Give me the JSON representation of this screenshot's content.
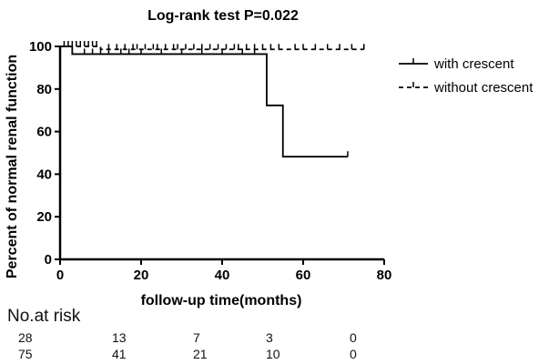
{
  "chart_data": {
    "type": "line",
    "title": "Log-rank test P=0.022",
    "xlabel": "follow-up time(months)",
    "ylabel": "Percent  of normal renal function",
    "xlim": [
      0,
      80
    ],
    "ylim": [
      0,
      100
    ],
    "xticks": [
      "0",
      "20",
      "40",
      "60",
      "80"
    ],
    "yticks": [
      "0",
      "20",
      "40",
      "60",
      "80",
      "100"
    ],
    "legend_position": "right",
    "series": [
      {
        "name": "with crescent",
        "style": "solid",
        "steps": [
          [
            0,
            100
          ],
          [
            3,
            96.4
          ],
          [
            51,
            72.3
          ],
          [
            55,
            48.2
          ],
          [
            71,
            48.2
          ]
        ],
        "censored": [
          6,
          8,
          10,
          12,
          15,
          17,
          20,
          25,
          30,
          35,
          40,
          45,
          48,
          71
        ]
      },
      {
        "name": "without crescent",
        "style": "dashed",
        "steps": [
          [
            0,
            100
          ],
          [
            10,
            98.6
          ],
          [
            75,
            98.6
          ]
        ],
        "censored": [
          1,
          2,
          3,
          4,
          5,
          6,
          7,
          8,
          9,
          12,
          14,
          16,
          18,
          19,
          21,
          23,
          24,
          26,
          28,
          29,
          31,
          33,
          35,
          37,
          39,
          41,
          43,
          44,
          46,
          48,
          50,
          52,
          54,
          58,
          60,
          63,
          66,
          69,
          72,
          75
        ]
      }
    ]
  },
  "risk_table": {
    "title": "No.at risk",
    "rows": [
      [
        "28",
        "13",
        "7",
        "3",
        "0"
      ],
      [
        "75",
        "41",
        "21",
        "10",
        "0"
      ]
    ]
  }
}
